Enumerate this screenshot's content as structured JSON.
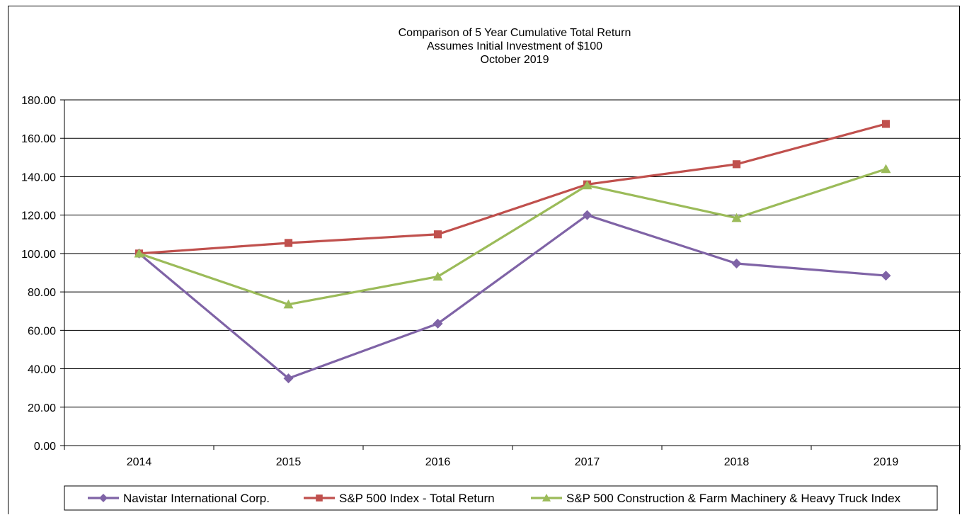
{
  "chart_data": {
    "type": "line",
    "title_lines": [
      "Comparison of 5 Year Cumulative Total Return",
      "Assumes Initial Investment of $100",
      "October 2019"
    ],
    "categories": [
      "2014",
      "2015",
      "2016",
      "2017",
      "2018",
      "2019"
    ],
    "ylim": [
      0,
      180
    ],
    "ytick_labels": [
      "0.00",
      "20.00",
      "40.00",
      "60.00",
      "80.00",
      "100.00",
      "120.00",
      "140.00",
      "160.00",
      "180.00"
    ],
    "grid": true,
    "legend_position": "bottom",
    "series": [
      {
        "name": "Navistar International Corp.",
        "color": "#7f63a6",
        "marker": "diamond",
        "values": [
          100.0,
          35.0,
          63.5,
          120.0,
          94.8,
          88.5
        ]
      },
      {
        "name": "S&P 500 Index - Total Return",
        "color": "#c0504d",
        "marker": "square",
        "values": [
          100.0,
          105.5,
          110.0,
          136.0,
          146.5,
          167.5
        ]
      },
      {
        "name": "S&P 500 Construction & Farm Machinery & Heavy Truck Index",
        "color": "#9bbb59",
        "marker": "triangle",
        "values": [
          100.0,
          73.5,
          88.0,
          135.5,
          118.5,
          144.0
        ]
      }
    ]
  }
}
